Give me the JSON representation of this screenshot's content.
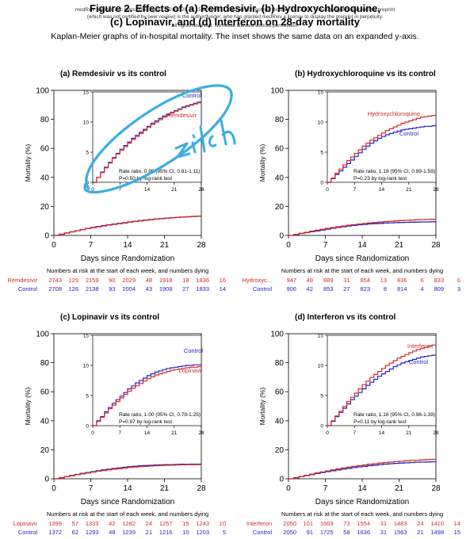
{
  "header": {
    "preprint_line_1": "medRxiv preprint doi: https://doi.org/10.1101/2020.10.15.20209817; this version posted October 15, 2020. The copyright holder for this preprint",
    "preprint_line_2": "(which was not certified by peer review) is the author/funder, who has granted medRxiv a license to display the preprint in perpetuity.",
    "preprint_line_3": "All rights reserved. No reuse allowed without permission.",
    "title_line_1": "Figure 2. Effects of (a) Remdesivir, (b) Hydroxychloroquine,",
    "title_line_2": "(c) Lopinavir, and (d) Interferon on 28-day mortality",
    "caption": "Kaplan-Meier graphs of in-hospital mortality. The inset shows the same data on an expanded y-axis."
  },
  "annotation": {
    "handwriting": "zilch",
    "color": "#3aaee0"
  },
  "chart_data": [
    {
      "type": "line",
      "title": "(a) Remdesivir vs its control",
      "xlabel": "Days since Randomization",
      "ylabel": "Mortality (%)",
      "xlim": [
        0,
        28
      ],
      "ylim": [
        0,
        100
      ],
      "xticks": [
        0,
        7,
        14,
        21,
        28
      ],
      "yticks": [
        0,
        20,
        40,
        60,
        80,
        100
      ],
      "x": [
        0,
        1,
        2,
        3,
        4,
        5,
        6,
        7,
        8,
        9,
        10,
        11,
        12,
        13,
        14,
        15,
        16,
        17,
        18,
        19,
        20,
        21,
        22,
        23,
        24,
        25,
        26,
        27,
        28
      ],
      "series": [
        {
          "name": "Remdesivir",
          "color": "#d62a2a",
          "values": [
            0,
            0.8,
            1.6,
            2.4,
            3.2,
            4.0,
            4.7,
            5.3,
            5.9,
            6.5,
            7.1,
            7.6,
            8.1,
            8.6,
            9.1,
            9.6,
            10.0,
            10.4,
            10.8,
            11.2,
            11.5,
            11.8,
            12.1,
            12.4,
            12.6,
            12.8,
            13.0,
            13.2,
            13.3
          ]
        },
        {
          "name": "Control",
          "color": "#2323c8",
          "values": [
            0,
            0.8,
            1.7,
            2.5,
            3.3,
            4.1,
            4.8,
            5.5,
            6.1,
            6.7,
            7.3,
            7.8,
            8.3,
            8.8,
            9.3,
            9.8,
            10.2,
            10.6,
            11.0,
            11.3,
            11.6,
            11.9,
            12.2,
            12.5,
            12.7,
            12.9,
            13.1,
            13.3,
            13.4
          ]
        }
      ],
      "inset": {
        "ylim": [
          0,
          15
        ],
        "yticks": [
          0,
          5,
          10,
          15
        ],
        "xticks": [
          0,
          7,
          14,
          21,
          28
        ],
        "annotation_1": "Rate ratio, 0.95 (95% CI, 0.81-1.11)",
        "annotation_2": "P=0.50 by log-rank test"
      },
      "risk_table": {
        "heading": "Numbers at risk at the start of each week, and numbers dying",
        "rows": [
          {
            "label": "Remdesivir",
            "color": "#d62a2a",
            "values": [
              "2743",
              "129",
              "2159",
              "90",
              "2029",
              "48",
              "1918",
              "18",
              "1836",
              "16"
            ]
          },
          {
            "label": "Control",
            "color": "#2323c8",
            "values": [
              "2708",
              "126",
              "2138",
              "93",
              "2004",
              "43",
              "1908",
              "27",
              "1833",
              "14"
            ]
          }
        ]
      }
    },
    {
      "type": "line",
      "title": "(b) Hydroxychloroquine vs its control",
      "xlabel": "Days since Randomization",
      "ylabel": "Mortality (%)",
      "xlim": [
        0,
        28
      ],
      "ylim": [
        0,
        100
      ],
      "xticks": [
        0,
        7,
        14,
        21,
        28
      ],
      "yticks": [
        0,
        20,
        40,
        60,
        80,
        100
      ],
      "x": [
        0,
        1,
        2,
        3,
        4,
        5,
        6,
        7,
        8,
        9,
        10,
        11,
        12,
        13,
        14,
        15,
        16,
        17,
        18,
        19,
        20,
        21,
        22,
        23,
        24,
        25,
        26,
        27,
        28
      ],
      "series": [
        {
          "name": "Hydroxychloroquine",
          "color": "#d62a2a",
          "values": [
            0,
            0.7,
            1.5,
            2.2,
            2.9,
            3.6,
            4.2,
            4.8,
            5.4,
            6.0,
            6.5,
            7.0,
            7.4,
            7.8,
            8.2,
            8.6,
            8.9,
            9.2,
            9.5,
            9.8,
            10.0,
            10.2,
            10.4,
            10.6,
            10.8,
            10.9,
            11.0,
            11.1,
            11.1
          ]
        },
        {
          "name": "Control",
          "color": "#2323c8",
          "values": [
            0,
            0.6,
            1.3,
            1.9,
            2.5,
            3.1,
            3.7,
            4.3,
            4.9,
            5.5,
            6.0,
            6.5,
            6.9,
            7.3,
            7.6,
            7.9,
            8.1,
            8.3,
            8.5,
            8.7,
            8.8,
            8.9,
            9.0,
            9.1,
            9.2,
            9.3,
            9.3,
            9.4,
            9.4
          ]
        }
      ],
      "inset": {
        "ylim": [
          0,
          15
        ],
        "yticks": [
          0,
          5,
          10,
          15
        ],
        "xticks": [
          0,
          7,
          14,
          21,
          28
        ],
        "annotation_1": "Rate ratio, 1.19 (95% CI, 0.89-1.59)",
        "annotation_2": "P=0.23 by log-rank test"
      },
      "risk_table": {
        "heading": "Numbers at risk at the start of each week, and numbers dying",
        "rows": [
          {
            "label": "Hydroxyc...",
            "color": "#d62a2a",
            "values": [
              "947",
              "48",
              "889",
              "31",
              "854",
              "13",
              "836",
              "6",
              "833",
              "6"
            ]
          },
          {
            "label": "Control",
            "color": "#2323c8",
            "values": [
              "906",
              "42",
              "853",
              "27",
              "823",
              "8",
              "814",
              "4",
              "809",
              "3"
            ]
          }
        ]
      }
    },
    {
      "type": "line",
      "title": "(c) Lopinavir vs its control",
      "xlabel": "Days since Randomization",
      "ylabel": "Mortality (%)",
      "xlim": [
        0,
        28
      ],
      "ylim": [
        0,
        100
      ],
      "xticks": [
        0,
        7,
        14,
        21,
        28
      ],
      "yticks": [
        0,
        20,
        40,
        60,
        80,
        100
      ],
      "x": [
        0,
        1,
        2,
        3,
        4,
        5,
        6,
        7,
        8,
        9,
        10,
        11,
        12,
        13,
        14,
        15,
        16,
        17,
        18,
        19,
        20,
        21,
        22,
        23,
        24,
        25,
        26,
        27,
        28
      ],
      "series": [
        {
          "name": "Lopinavir",
          "color": "#d62a2a",
          "values": [
            0,
            0.7,
            1.4,
            2.1,
            2.8,
            3.4,
            4.0,
            4.6,
            5.2,
            5.7,
            6.2,
            6.6,
            7.0,
            7.4,
            7.8,
            8.1,
            8.4,
            8.6,
            8.8,
            9.0,
            9.2,
            9.3,
            9.4,
            9.5,
            9.6,
            9.7,
            9.7,
            9.8,
            9.8
          ]
        },
        {
          "name": "Control",
          "color": "#2323c8",
          "values": [
            0,
            0.8,
            1.5,
            2.3,
            3.0,
            3.7,
            4.3,
            4.9,
            5.5,
            6.1,
            6.6,
            7.1,
            7.5,
            7.9,
            8.3,
            8.6,
            8.9,
            9.1,
            9.3,
            9.5,
            9.6,
            9.7,
            9.8,
            9.9,
            10.0,
            10.0,
            10.1,
            10.1,
            10.1
          ]
        }
      ],
      "inset": {
        "ylim": [
          0,
          15
        ],
        "yticks": [
          0,
          5,
          10,
          15
        ],
        "xticks": [
          0,
          7,
          14,
          21,
          28
        ],
        "annotation_1": "Rate ratio, 1.00 (95% CI, 0.79-1.25)",
        "annotation_2": "P=0.97 by log-rank test"
      },
      "risk_table": {
        "heading": "Numbers at risk at the start of each week, and numbers dying",
        "rows": [
          {
            "label": "Lopinavir",
            "color": "#d62a2a",
            "values": [
              "1399",
              "57",
              "1333",
              "42",
              "1282",
              "24",
              "1257",
              "15",
              "1243",
              "10"
            ]
          },
          {
            "label": "Control",
            "color": "#2323c8",
            "values": [
              "1372",
              "62",
              "1293",
              "48",
              "1239",
              "21",
              "1216",
              "10",
              "1203",
              "5"
            ]
          }
        ]
      }
    },
    {
      "type": "line",
      "title": "(d) Interferon vs its control",
      "xlabel": "Days since Randomization",
      "ylabel": "Mortality (%)",
      "xlim": [
        0,
        28
      ],
      "ylim": [
        0,
        100
      ],
      "xticks": [
        0,
        7,
        14,
        21,
        28
      ],
      "yticks": [
        0,
        20,
        40,
        60,
        80,
        100
      ],
      "x": [
        0,
        1,
        2,
        3,
        4,
        5,
        6,
        7,
        8,
        9,
        10,
        11,
        12,
        13,
        14,
        15,
        16,
        17,
        18,
        19,
        20,
        21,
        22,
        23,
        24,
        25,
        26,
        27,
        28
      ],
      "series": [
        {
          "name": "Interferon",
          "color": "#d62a2a",
          "values": [
            0,
            0.8,
            1.6,
            2.4,
            3.2,
            4.0,
            4.7,
            5.4,
            6.1,
            6.8,
            7.4,
            8.0,
            8.5,
            9.0,
            9.5,
            10.0,
            10.4,
            10.8,
            11.2,
            11.5,
            11.8,
            12.1,
            12.4,
            12.6,
            12.8,
            13.0,
            13.2,
            13.4,
            13.5
          ]
        },
        {
          "name": "Control",
          "color": "#2323c8",
          "values": [
            0,
            0.7,
            1.5,
            2.2,
            2.9,
            3.6,
            4.3,
            4.9,
            5.5,
            6.1,
            6.7,
            7.2,
            7.7,
            8.2,
            8.6,
            9.0,
            9.4,
            9.8,
            10.1,
            10.4,
            10.6,
            10.8,
            11.0,
            11.2,
            11.4,
            11.5,
            11.6,
            11.7,
            11.8
          ]
        }
      ],
      "inset": {
        "ylim": [
          0,
          15
        ],
        "yticks": [
          0,
          5,
          10,
          15
        ],
        "xticks": [
          0,
          7,
          14,
          21,
          28
        ],
        "annotation_1": "Rate ratio, 1.16 (95% CI, 0.96-1.39)",
        "annotation_2": "P=0.11 by log-rank test"
      },
      "risk_table": {
        "heading": "Numbers at risk at the start of each week, and numbers dying",
        "rows": [
          {
            "label": "Interferon",
            "color": "#d62a2a",
            "values": [
              "2050",
              "101",
              "1669",
              "73",
              "1554",
              "31",
              "1483",
              "24",
              "1410",
              "14"
            ]
          },
          {
            "label": "Control",
            "color": "#2323c8",
            "values": [
              "2050",
              "91",
              "1725",
              "58",
              "1636",
              "31",
              "1563",
              "21",
              "1498",
              "15"
            ]
          }
        ]
      }
    }
  ]
}
